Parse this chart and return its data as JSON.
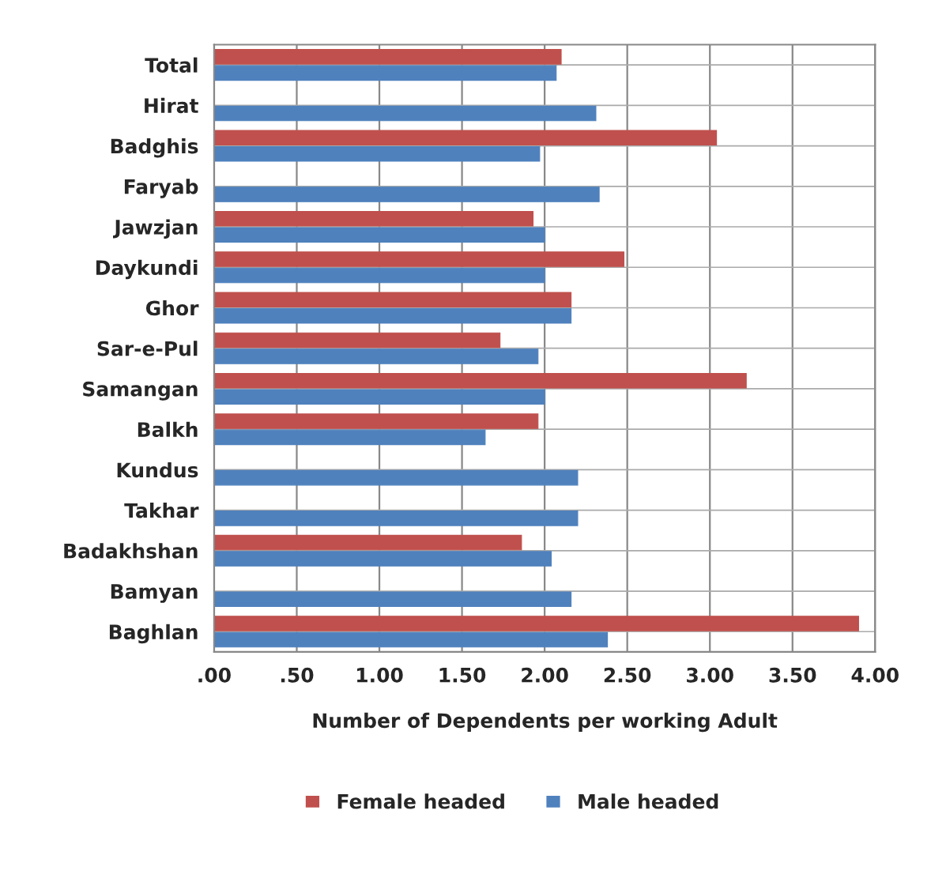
{
  "chart_data": {
    "type": "bar",
    "orientation": "horizontal",
    "xlabel": "Number of Dependents per working Adult",
    "categories": [
      "Total",
      "Hirat",
      "Badghis",
      "Faryab",
      "Jawzjan",
      "Daykundi",
      "Ghor",
      "Sar-e-Pul",
      "Samangan",
      "Balkh",
      "Kundus",
      "Takhar",
      "Badakhshan",
      "Bamyan",
      "Baghlan"
    ],
    "series": [
      {
        "name": "Female headed",
        "color": "#c0504d",
        "values": [
          2.1,
          0,
          3.04,
          0,
          1.93,
          2.48,
          2.16,
          1.73,
          3.22,
          1.96,
          0,
          0,
          1.86,
          0,
          3.9
        ]
      },
      {
        "name": "Male headed",
        "color": "#4f81bd",
        "values": [
          2.07,
          2.31,
          1.97,
          2.33,
          2.0,
          2.0,
          2.16,
          1.96,
          2.0,
          1.64,
          2.2,
          2.2,
          2.04,
          2.16,
          2.38
        ]
      }
    ],
    "xlim": [
      0,
      4
    ],
    "xticks": [
      {
        "value": 0,
        "label": ".00"
      },
      {
        "value": 0.5,
        "label": ".50"
      },
      {
        "value": 1,
        "label": "1.00"
      },
      {
        "value": 1.5,
        "label": "1.50"
      },
      {
        "value": 2,
        "label": "2.00"
      },
      {
        "value": 2.5,
        "label": "2.50"
      },
      {
        "value": 3,
        "label": "3.00"
      },
      {
        "value": 3.5,
        "label": "3.50"
      },
      {
        "value": 4,
        "label": "4.00"
      }
    ],
    "grid": true,
    "legend": "bottom"
  }
}
